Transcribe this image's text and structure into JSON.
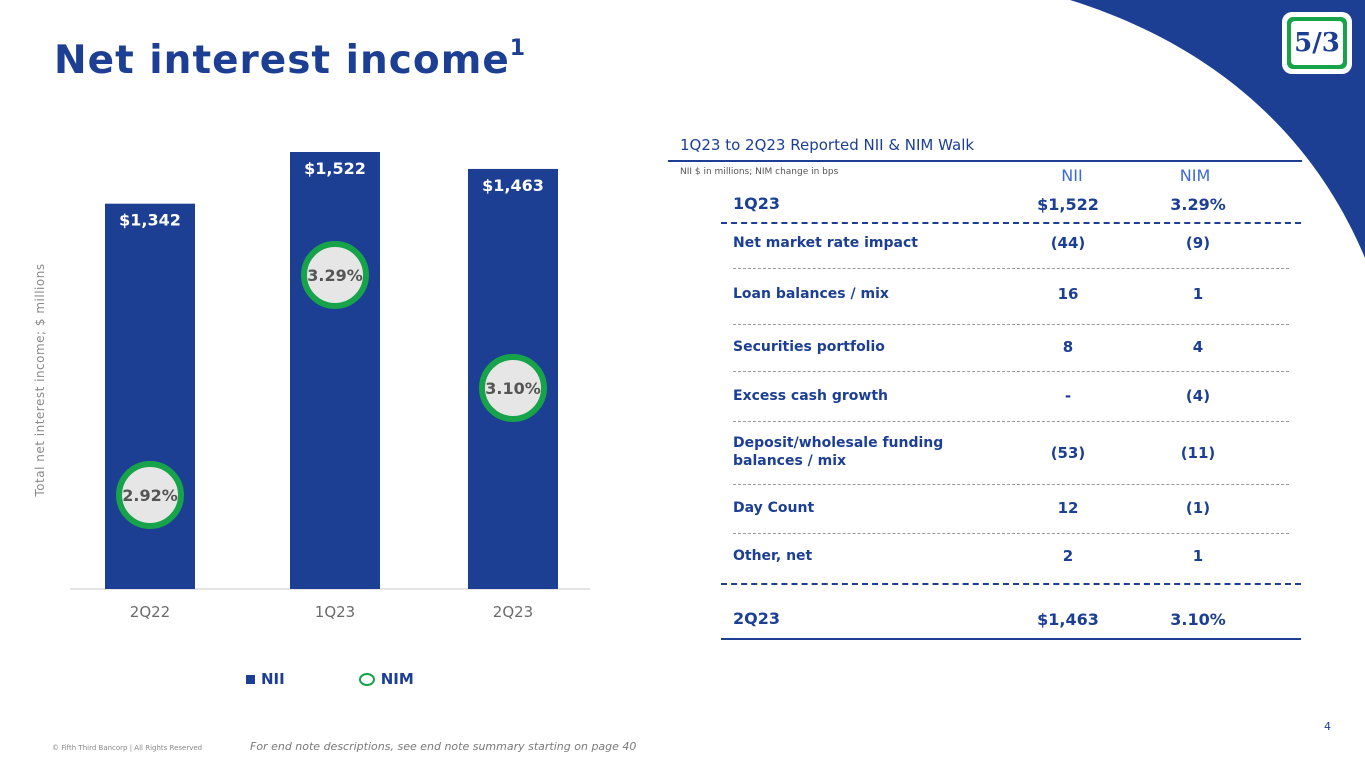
{
  "slide": {
    "title": "Net interest income",
    "title_footnote": "1",
    "footer_copyright": "© Fifth Third Bancorp | All Rights Reserved",
    "footer_note": "For end note descriptions, see end note summary starting on page 40",
    "page_number": "4",
    "logo_text": "5/3"
  },
  "colors": {
    "navy": "#1c3f94",
    "green": "#16a34a",
    "nim_fill": "#e6e6e6",
    "header_blue": "#3c6ad4"
  },
  "chart_data": {
    "type": "bar",
    "categories": [
      "2Q22",
      "1Q23",
      "2Q23"
    ],
    "series": [
      {
        "name": "NII",
        "values": [
          1342,
          1522,
          1463
        ],
        "labels": [
          "$1,342",
          "$1,522",
          "$1,463"
        ]
      },
      {
        "name": "NIM",
        "values": [
          2.92,
          3.29,
          3.1
        ],
        "labels": [
          "2.92%",
          "3.29%",
          "3.10%"
        ]
      }
    ],
    "nim_axis_range": [
      2.92,
      3.29
    ],
    "ylabel": "Total net interest income; $ millions",
    "ylim": [
      0,
      1522
    ],
    "legend": [
      "NII",
      "NIM"
    ],
    "legend_position": "bottom"
  },
  "walk": {
    "title": "1Q23 to 2Q23 Reported NII & NIM Walk",
    "note": "NII $ in millions; NIM change in bps",
    "col_nii": "NII",
    "col_nim": "NIM",
    "start": {
      "label": "1Q23",
      "nii": "$1,522",
      "nim": "3.29%"
    },
    "rows": [
      {
        "label": "Net market rate impact",
        "nii": "(44)",
        "nim": "(9)"
      },
      {
        "label": "Loan balances / mix",
        "nii": "16",
        "nim": "1"
      },
      {
        "label": "Securities portfolio",
        "nii": "8",
        "nim": "4"
      },
      {
        "label": "Excess cash growth",
        "nii": "-",
        "nim": "(4)"
      },
      {
        "label": "Deposit/wholesale funding balances / mix",
        "nii": "(53)",
        "nim": "(11)"
      },
      {
        "label": "Day Count",
        "nii": "12",
        "nim": "(1)"
      },
      {
        "label": "Other, net",
        "nii": "2",
        "nim": "1"
      }
    ],
    "end": {
      "label": "2Q23",
      "nii": "$1,463",
      "nim": "3.10%"
    }
  }
}
